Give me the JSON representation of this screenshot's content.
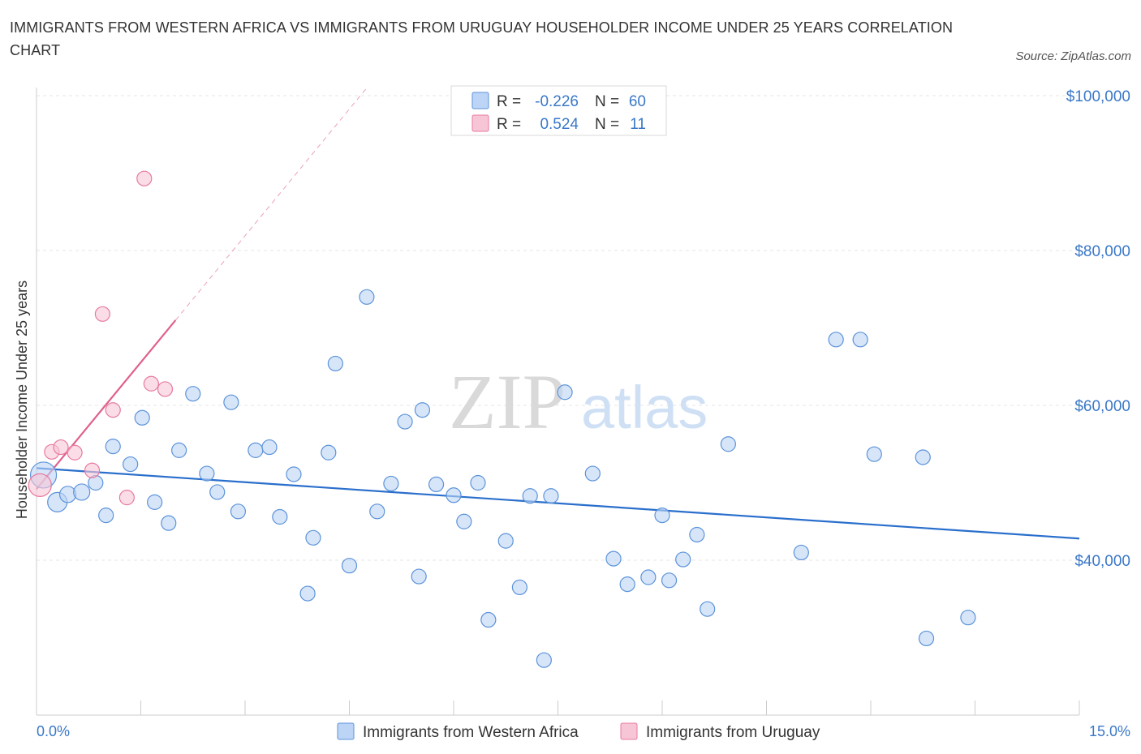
{
  "title": "IMMIGRANTS FROM WESTERN AFRICA VS IMMIGRANTS FROM URUGUAY HOUSEHOLDER INCOME UNDER 25 YEARS CORRELATION CHART",
  "source": "Source: ZipAtlas.com",
  "watermark": {
    "zip": "ZIP",
    "atlas": "atlas"
  },
  "colors": {
    "blue": "#5b93d9",
    "blue_fill": "#bcd4f5",
    "blue_line": "#2a6fcc",
    "pink": "#e87aa0",
    "pink_fill": "#f7c6d6",
    "pink_line": "#e0608d",
    "axis_label": "#3a78c8"
  },
  "stats_legend": [
    {
      "r_label": "R =",
      "r_value": "-0.226",
      "n_label": "N =",
      "n_value": "60"
    },
    {
      "r_label": "R =",
      "r_value": "0.524",
      "n_label": "N =",
      "n_value": "11"
    }
  ],
  "bottom_legend": [
    "Immigrants from Western Africa",
    "Immigrants from Uruguay"
  ],
  "chart_data": {
    "type": "scatter",
    "xlabel": "",
    "ylabel": "Householder Income Under 25 years",
    "xlim": [
      0,
      15
    ],
    "ylim": [
      20000,
      100000
    ],
    "x_tick_labels": [
      "0.0%",
      "15.0%"
    ],
    "y_tick_labels": [
      "$40,000",
      "$60,000",
      "$80,000",
      "$100,000"
    ],
    "y_ticks": [
      40000,
      60000,
      80000,
      100000
    ],
    "series": [
      {
        "name": "Immigrants from Western Africa",
        "trend": {
          "x": [
            0,
            15
          ],
          "y": [
            51900,
            42800
          ],
          "style": "solid"
        },
        "points": [
          {
            "x": 0.1,
            "y": 51000,
            "s": 16
          },
          {
            "x": 0.3,
            "y": 47500,
            "s": 12
          },
          {
            "x": 0.45,
            "y": 48500,
            "s": 10
          },
          {
            "x": 0.65,
            "y": 48800,
            "s": 10
          },
          {
            "x": 0.85,
            "y": 50000,
            "s": 9
          },
          {
            "x": 1.0,
            "y": 45800,
            "s": 9
          },
          {
            "x": 1.1,
            "y": 54700,
            "s": 9
          },
          {
            "x": 1.35,
            "y": 52400,
            "s": 9
          },
          {
            "x": 1.52,
            "y": 58400,
            "s": 9
          },
          {
            "x": 1.7,
            "y": 47500,
            "s": 9
          },
          {
            "x": 1.9,
            "y": 44800,
            "s": 9
          },
          {
            "x": 2.05,
            "y": 54200,
            "s": 9
          },
          {
            "x": 2.25,
            "y": 61500,
            "s": 9
          },
          {
            "x": 2.45,
            "y": 51200,
            "s": 9
          },
          {
            "x": 2.6,
            "y": 48800,
            "s": 9
          },
          {
            "x": 2.8,
            "y": 60400,
            "s": 9
          },
          {
            "x": 2.9,
            "y": 46300,
            "s": 9
          },
          {
            "x": 3.15,
            "y": 54200,
            "s": 9
          },
          {
            "x": 3.35,
            "y": 54600,
            "s": 9
          },
          {
            "x": 3.5,
            "y": 45600,
            "s": 9
          },
          {
            "x": 3.7,
            "y": 51100,
            "s": 9
          },
          {
            "x": 3.9,
            "y": 35700,
            "s": 9
          },
          {
            "x": 3.98,
            "y": 42900,
            "s": 9
          },
          {
            "x": 4.2,
            "y": 53900,
            "s": 9
          },
          {
            "x": 4.3,
            "y": 65400,
            "s": 9
          },
          {
            "x": 4.5,
            "y": 39300,
            "s": 9
          },
          {
            "x": 4.75,
            "y": 74000,
            "s": 9
          },
          {
            "x": 4.9,
            "y": 46300,
            "s": 9
          },
          {
            "x": 5.1,
            "y": 49900,
            "s": 9
          },
          {
            "x": 5.3,
            "y": 57900,
            "s": 9
          },
          {
            "x": 5.5,
            "y": 37900,
            "s": 9
          },
          {
            "x": 5.55,
            "y": 59400,
            "s": 9
          },
          {
            "x": 5.75,
            "y": 49800,
            "s": 9
          },
          {
            "x": 6.0,
            "y": 48400,
            "s": 9
          },
          {
            "x": 6.15,
            "y": 45000,
            "s": 9
          },
          {
            "x": 6.35,
            "y": 50000,
            "s": 9
          },
          {
            "x": 6.5,
            "y": 32300,
            "s": 9
          },
          {
            "x": 6.75,
            "y": 42500,
            "s": 9
          },
          {
            "x": 6.95,
            "y": 36500,
            "s": 9
          },
          {
            "x": 7.1,
            "y": 48300,
            "s": 9
          },
          {
            "x": 7.3,
            "y": 27100,
            "s": 9
          },
          {
            "x": 7.4,
            "y": 48300,
            "s": 9
          },
          {
            "x": 7.6,
            "y": 61700,
            "s": 9
          },
          {
            "x": 8.0,
            "y": 51200,
            "s": 9
          },
          {
            "x": 8.3,
            "y": 40200,
            "s": 9
          },
          {
            "x": 8.5,
            "y": 36900,
            "s": 9
          },
          {
            "x": 8.8,
            "y": 37800,
            "s": 9
          },
          {
            "x": 9.0,
            "y": 45800,
            "s": 9
          },
          {
            "x": 9.1,
            "y": 37400,
            "s": 9
          },
          {
            "x": 9.3,
            "y": 40100,
            "s": 9
          },
          {
            "x": 9.5,
            "y": 43300,
            "s": 9
          },
          {
            "x": 9.65,
            "y": 33700,
            "s": 9
          },
          {
            "x": 9.95,
            "y": 55000,
            "s": 9
          },
          {
            "x": 11.0,
            "y": 41000,
            "s": 9
          },
          {
            "x": 11.5,
            "y": 68500,
            "s": 9
          },
          {
            "x": 11.85,
            "y": 68500,
            "s": 9
          },
          {
            "x": 12.05,
            "y": 53700,
            "s": 9
          },
          {
            "x": 12.75,
            "y": 53300,
            "s": 9
          },
          {
            "x": 12.8,
            "y": 29900,
            "s": 9
          },
          {
            "x": 13.4,
            "y": 32600,
            "s": 9
          }
        ]
      },
      {
        "name": "Immigrants from Uruguay",
        "trend": {
          "x": [
            0,
            2.0
          ],
          "y": [
            49200,
            71000
          ],
          "style": "solid",
          "extension": {
            "x": [
              2.0,
              4.75
            ],
            "y": [
              71000,
              101000
            ],
            "style": "dashed"
          }
        },
        "points": [
          {
            "x": 0.05,
            "y": 49700,
            "s": 14
          },
          {
            "x": 0.22,
            "y": 54000,
            "s": 9
          },
          {
            "x": 0.35,
            "y": 54600,
            "s": 9
          },
          {
            "x": 0.55,
            "y": 53900,
            "s": 9
          },
          {
            "x": 0.8,
            "y": 51600,
            "s": 9
          },
          {
            "x": 0.95,
            "y": 71800,
            "s": 9
          },
          {
            "x": 1.1,
            "y": 59400,
            "s": 9
          },
          {
            "x": 1.3,
            "y": 48100,
            "s": 9
          },
          {
            "x": 1.55,
            "y": 89300,
            "s": 9
          },
          {
            "x": 1.65,
            "y": 62800,
            "s": 9
          },
          {
            "x": 1.85,
            "y": 62100,
            "s": 9
          }
        ]
      }
    ]
  }
}
